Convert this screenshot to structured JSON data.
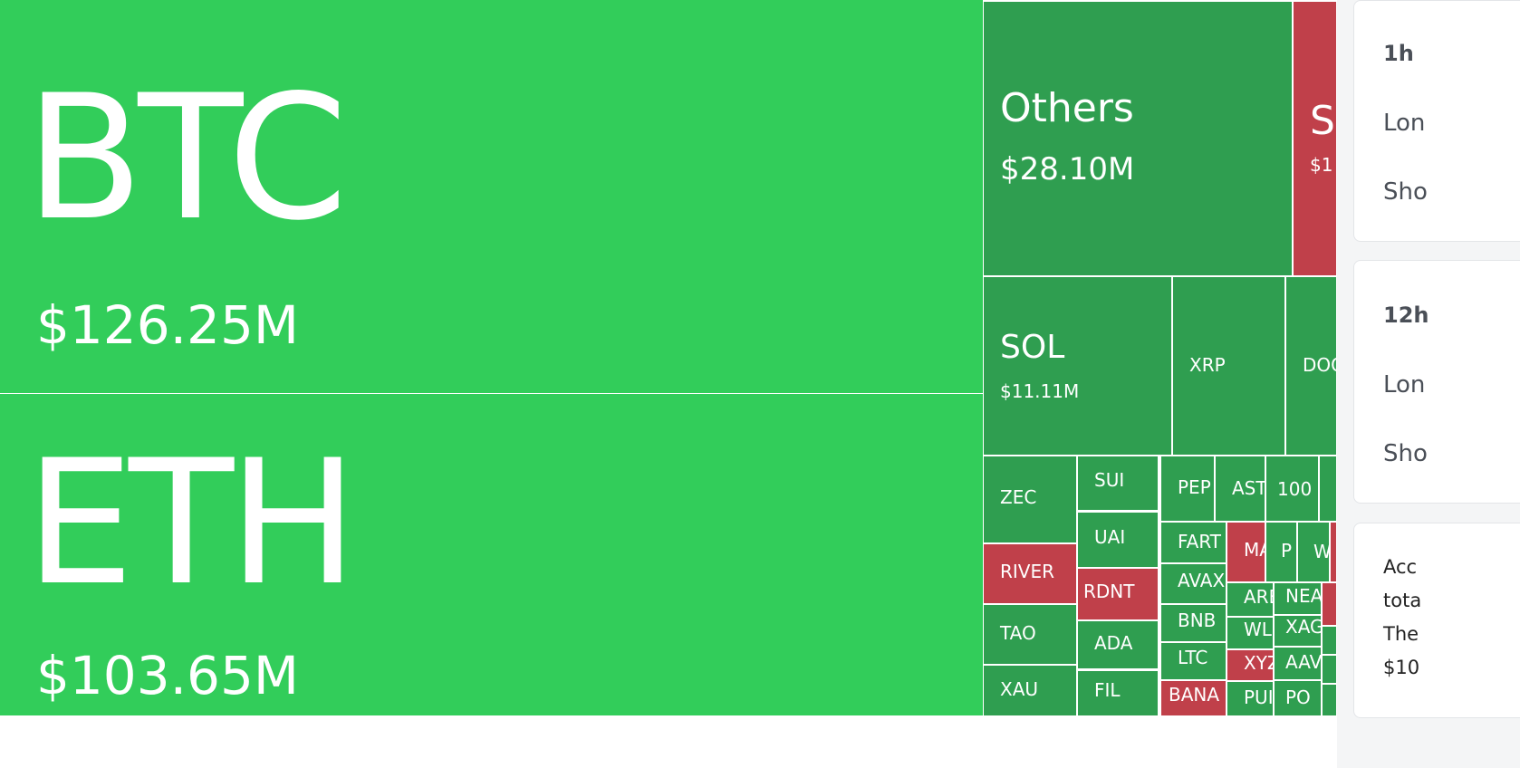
{
  "colors": {
    "up_big": "#32CD5A",
    "up": "#2F9E50",
    "down": "#C0404A"
  },
  "tiles": [
    {
      "label": "BTC",
      "value": "$126.25M",
      "color": "up_big"
    },
    {
      "label": "ETH",
      "value": "$103.65M",
      "color": "up_big"
    },
    {
      "label": "Others",
      "value": "$28.10M",
      "color": "up"
    },
    {
      "label": "S",
      "value": "$1",
      "color": "down"
    },
    {
      "label": "SOL",
      "value": "$11.11M",
      "color": "up"
    },
    {
      "label": "XRP",
      "color": "up"
    },
    {
      "label": "DOG",
      "color": "up"
    },
    {
      "label": "ZEC",
      "color": "up"
    },
    {
      "label": "RIVER",
      "color": "down"
    },
    {
      "label": "TAO",
      "color": "up"
    },
    {
      "label": "XAU",
      "color": "up"
    },
    {
      "label": "SUI",
      "color": "up"
    },
    {
      "label": "UAI",
      "color": "up"
    },
    {
      "label": "RDNT",
      "color": "down"
    },
    {
      "label": "ADA",
      "color": "up"
    },
    {
      "label": "FIL",
      "color": "up"
    },
    {
      "label": "PEP",
      "color": "up"
    },
    {
      "label": "AST",
      "color": "up"
    },
    {
      "label": "100",
      "color": "up"
    },
    {
      "label": "",
      "color": "up"
    },
    {
      "label": "FART",
      "color": "up"
    },
    {
      "label": "AVAX",
      "color": "up"
    },
    {
      "label": "BNB",
      "color": "up"
    },
    {
      "label": "LTC",
      "color": "up"
    },
    {
      "label": "BANA",
      "color": "down"
    },
    {
      "label": "MA",
      "color": "down"
    },
    {
      "label": "P",
      "color": "up"
    },
    {
      "label": "W",
      "color": "up"
    },
    {
      "label": "",
      "color": "down"
    },
    {
      "label": "ARB",
      "color": "up"
    },
    {
      "label": "NEA",
      "color": "up"
    },
    {
      "label": "WL",
      "color": "up"
    },
    {
      "label": "XAG",
      "color": "up"
    },
    {
      "label": "XYZ",
      "color": "down"
    },
    {
      "label": "AAV",
      "color": "up"
    },
    {
      "label": "PUI",
      "color": "up"
    },
    {
      "label": "PO",
      "color": "up"
    },
    {
      "label": "",
      "color": "down"
    },
    {
      "label": "",
      "color": "up"
    },
    {
      "label": "",
      "color": "up"
    },
    {
      "label": "",
      "color": "up"
    }
  ],
  "panel": {
    "card1": {
      "title": "1h",
      "long": "Lon",
      "short": "Sho"
    },
    "card2": {
      "title": "12h",
      "long": "Lon",
      "short": "Sho"
    },
    "card3": {
      "lines": [
        "Acc",
        "tota",
        "The",
        "$10"
      ]
    }
  }
}
